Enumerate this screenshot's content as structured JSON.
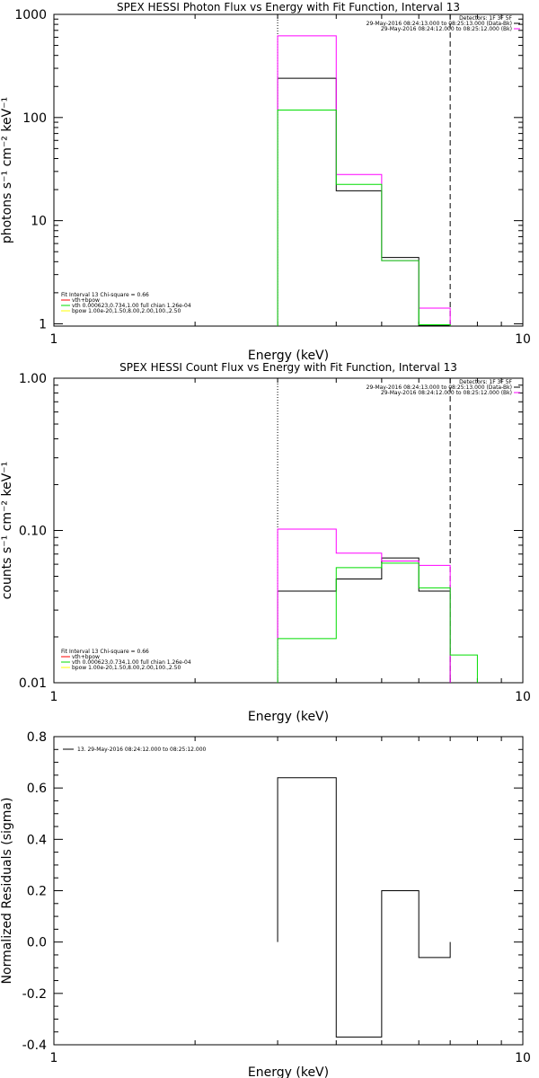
{
  "colors": {
    "data": "#000000",
    "model": "#ff00ff",
    "vth": "#00dd00",
    "bpow": "#ffff00",
    "vthbpow": "#ff0000"
  },
  "chart_data": [
    {
      "type": "line",
      "title": "SPEX HESSI Photon Flux vs Energy with Fit Function, Interval 13",
      "xlabel": "Energy (keV)",
      "ylabel": "photons s⁻¹ cm⁻² keV⁻¹",
      "xscale": "log",
      "yscale": "log",
      "xlim": [
        1,
        10
      ],
      "ylim": [
        0.95,
        1000
      ],
      "xticks": [
        1,
        10
      ],
      "xtick_labels": [
        "1",
        "10"
      ],
      "yticks": [
        1,
        10,
        100,
        1000
      ],
      "ytick_labels": [
        "1",
        "10",
        "100",
        "1000"
      ],
      "vlines": [
        {
          "x": 3.0,
          "style": "dotted"
        },
        {
          "x": 7.0,
          "style": "dashed"
        }
      ],
      "legend_right": [
        "Detectors: 1F 3F 5F",
        "29-May-2016 08:24:13.000 to 08:25:13.000 (Data-Bk)",
        "29-May-2016 08:24:12.000 to 08:25:12.000 (Bk)"
      ],
      "legend_left": [
        "Fit Interval 13    Chi-square = 0.66",
        "vth+bpow",
        "vth 0.000623,0.734,1.00  full chian 1.26e-04",
        "bpow 1.00e-20,1.50,8.00,2.00,100.,2.50"
      ],
      "series": [
        {
          "name": "29-May-2016 08:24:13.000 to 08:25:13.000 (Data-Bk)",
          "color": "data",
          "edges": [
            3,
            4,
            5,
            6,
            7
          ],
          "values": [
            240,
            19.5,
            4.4,
            0.96
          ]
        },
        {
          "name": "29-May-2016 08:24:12.000 to 08:25:12.000 (Bk)",
          "color": "model",
          "edges": [
            3,
            4,
            5,
            6,
            7
          ],
          "values": [
            620,
            28,
            4.1,
            1.42
          ]
        },
        {
          "name": "vth 0.000623,0.734,1.00  full chian 1.26e-04",
          "color": "vth",
          "edges": [
            3,
            4,
            5,
            6,
            7
          ],
          "values": [
            118,
            22.5,
            4.1,
            0.98
          ]
        }
      ]
    },
    {
      "type": "line",
      "title": "SPEX HESSI Count Flux vs Energy with Fit Function, Interval 13",
      "xlabel": "Energy (keV)",
      "ylabel": "counts s⁻¹ cm⁻² keV⁻¹",
      "xscale": "log",
      "yscale": "log",
      "xlim": [
        1,
        10
      ],
      "ylim": [
        0.01,
        1.0
      ],
      "xticks": [
        1,
        10
      ],
      "xtick_labels": [
        "1",
        "10"
      ],
      "yticks": [
        0.01,
        0.1,
        1.0
      ],
      "ytick_labels": [
        "0.01",
        "0.10",
        "1.00"
      ],
      "vlines": [
        {
          "x": 3.0,
          "style": "dotted"
        },
        {
          "x": 7.0,
          "style": "dashed"
        }
      ],
      "legend_right": [
        "Detectors: 1F 3F 5F",
        "29-May-2016 08:24:13.000 to 08:25:13.000 (Data-Bk)",
        "29-May-2016 08:24:12.000 to 08:25:12.000 (Bk)"
      ],
      "legend_left": [
        "Fit Interval 13    Chi-square = 0.66",
        "vth+bpow",
        "vth 0.000623,0.734,1.00  full chian 1.26e-04",
        "bpow 1.00e-20,1.50,8.00,2.00,100.,2.50"
      ],
      "series": [
        {
          "name": "29-May-2016 08:24:13.000 to 08:25:13.000 (Data-Bk)",
          "color": "data",
          "edges": [
            3,
            4,
            5,
            6,
            7
          ],
          "values": [
            0.04,
            0.048,
            0.066,
            0.04
          ]
        },
        {
          "name": "29-May-2016 08:24:12.000 to 08:25:12.000 (Bk)",
          "color": "model",
          "edges": [
            3,
            4,
            5,
            6,
            7
          ],
          "values": [
            0.102,
            0.071,
            0.063,
            0.059
          ]
        },
        {
          "name": "vth 0.000623,0.734,1.00  full chian 1.26e-04",
          "color": "vth",
          "edges": [
            3,
            4,
            5,
            6,
            7,
            8
          ],
          "values": [
            0.0195,
            0.057,
            0.061,
            0.042,
            0.0152
          ]
        }
      ]
    },
    {
      "type": "line",
      "title": "",
      "xlabel": "Energy (keV)",
      "ylabel": "Normalized Residuals (sigma)",
      "xscale": "log",
      "yscale": "linear",
      "xlim": [
        1,
        10
      ],
      "ylim": [
        -0.4,
        0.8
      ],
      "xticks": [
        1,
        10
      ],
      "xtick_labels": [
        "1",
        "10"
      ],
      "yticks": [
        -0.4,
        -0.2,
        0.0,
        0.2,
        0.4,
        0.6,
        0.8
      ],
      "ytick_labels": [
        "-0.4",
        "-0.2",
        "0.0",
        "0.2",
        "0.4",
        "0.6",
        "0.8"
      ],
      "vlines": [],
      "legend_right": [],
      "legend_left": [],
      "legend_top_left": [
        "13. 29-May-2016 08:24:12.000 to 08:25:12.000"
      ],
      "series": [
        {
          "name": "13. 29-May-2016 08:24:12.000 to 08:25:12.000",
          "color": "data",
          "edges": [
            3,
            4,
            5,
            6,
            7
          ],
          "values": [
            0.64,
            -0.37,
            0.2,
            -0.06
          ]
        }
      ]
    }
  ]
}
